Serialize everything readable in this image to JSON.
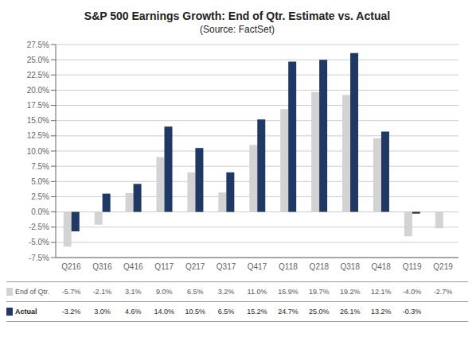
{
  "chart_data": {
    "type": "bar",
    "title": "S&P 500 Earnings Growth: End of Qtr. Estimate vs. Actual",
    "subtitle": "(Source: FactSet)",
    "categories": [
      "Q216",
      "Q316",
      "Q416",
      "Q117",
      "Q217",
      "Q317",
      "Q417",
      "Q118",
      "Q218",
      "Q318",
      "Q418",
      "Q119",
      "Q219"
    ],
    "series": [
      {
        "name": "End of Qtr.",
        "color": "#d3d3d3",
        "values": [
          -5.7,
          -2.1,
          3.1,
          9.0,
          6.5,
          3.2,
          11.0,
          16.9,
          19.7,
          19.2,
          12.1,
          -4.0,
          -2.7
        ],
        "value_labels": [
          "-5.7%",
          "-2.1%",
          "3.1%",
          "9.0%",
          "6.5%",
          "3.2%",
          "11.0%",
          "16.9%",
          "19.7%",
          "19.2%",
          "12.1%",
          "-4.0%",
          "-2.7%"
        ]
      },
      {
        "name": "Actual",
        "color": "#1f3864",
        "values": [
          -3.2,
          3.0,
          4.6,
          14.0,
          10.5,
          6.5,
          15.2,
          24.7,
          25.0,
          26.1,
          13.2,
          -0.3,
          null
        ],
        "value_labels": [
          "-3.2%",
          "3.0%",
          "4.6%",
          "14.0%",
          "10.5%",
          "6.5%",
          "15.2%",
          "24.7%",
          "25.0%",
          "26.1%",
          "13.2%",
          "-0.3%",
          null
        ]
      }
    ],
    "ylim": [
      -7.5,
      27.5
    ],
    "yticks": [
      {
        "value": -7.5,
        "label": "-7.5%"
      },
      {
        "value": -5.0,
        "label": "-5.0%"
      },
      {
        "value": -2.5,
        "label": "-2.5%"
      },
      {
        "value": 0.0,
        "label": "0.0%"
      },
      {
        "value": 2.5,
        "label": "2.5%"
      },
      {
        "value": 5.0,
        "label": "5.0%"
      },
      {
        "value": 7.5,
        "label": "7.5%"
      },
      {
        "value": 10.0,
        "label": "10.0%"
      },
      {
        "value": 12.5,
        "label": "12.5%"
      },
      {
        "value": 15.0,
        "label": "15.0%"
      },
      {
        "value": 17.5,
        "label": "17.5%"
      },
      {
        "value": 20.0,
        "label": "20.0%"
      },
      {
        "value": 22.5,
        "label": "22.5%"
      },
      {
        "value": 25.0,
        "label": "25.0%"
      },
      {
        "value": 27.5,
        "label": "27.5%"
      }
    ],
    "grid": true
  }
}
